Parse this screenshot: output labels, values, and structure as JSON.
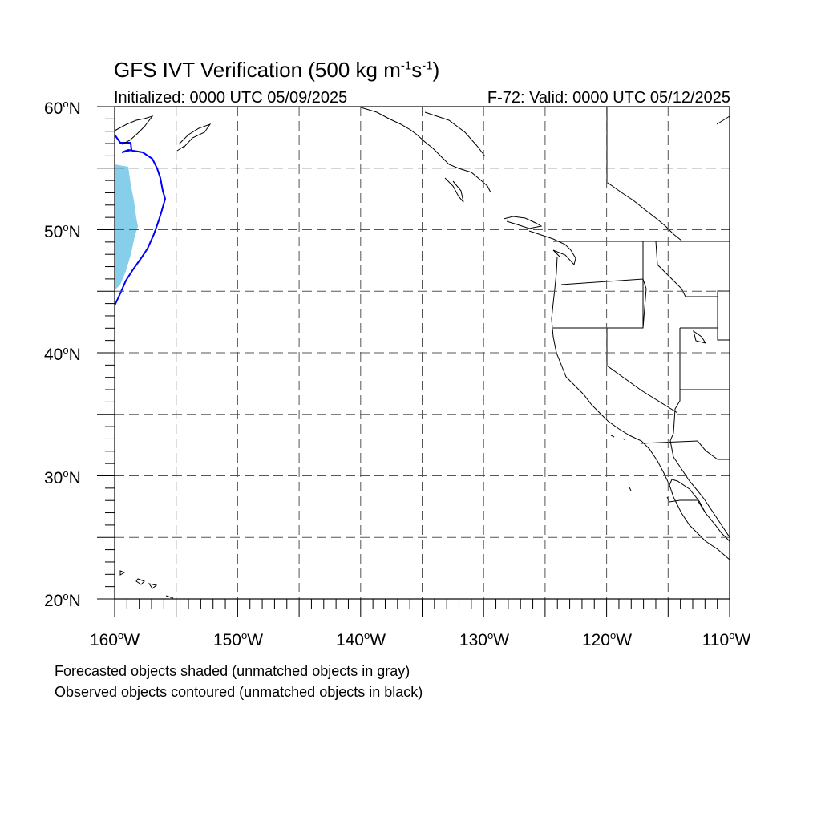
{
  "title": {
    "main": "GFS IVT Verification (500 kg m",
    "exp1": "-1",
    "mid": "s",
    "exp2": "-1",
    "end": ")"
  },
  "subtitle": {
    "left": "Initialized: 0000 UTC 05/09/2025",
    "right": "F-72: Valid: 0000 UTC 05/12/2025"
  },
  "map": {
    "projection": "cylindrical equidistant",
    "lon_range": [
      -160,
      -110
    ],
    "lat_range": [
      20,
      60
    ],
    "grid": "dashed every 5 degrees",
    "colors": {
      "forecast_matched": "#87ceeb",
      "observed_matched": "#0000ff",
      "coastline": "#000000",
      "grid": "#555555"
    }
  },
  "axes": {
    "lat_labels": [
      {
        "num": "60",
        "deg": "o",
        "hem": "N"
      },
      {
        "num": "50",
        "deg": "o",
        "hem": "N"
      },
      {
        "num": "40",
        "deg": "o",
        "hem": "N"
      },
      {
        "num": "30",
        "deg": "o",
        "hem": "N"
      },
      {
        "num": "20",
        "deg": "o",
        "hem": "N"
      }
    ],
    "lon_labels": [
      {
        "num": "160",
        "deg": "o",
        "hem": "W"
      },
      {
        "num": "150",
        "deg": "o",
        "hem": "W"
      },
      {
        "num": "140",
        "deg": "o",
        "hem": "W"
      },
      {
        "num": "130",
        "deg": "o",
        "hem": "W"
      },
      {
        "num": "120",
        "deg": "o",
        "hem": "W"
      },
      {
        "num": "110",
        "deg": "o",
        "hem": "W"
      }
    ]
  },
  "notes": {
    "line1": "Forecasted objects shaded (unmatched objects in gray)",
    "line2": "Observed objects contoured (unmatched objects in black)"
  }
}
